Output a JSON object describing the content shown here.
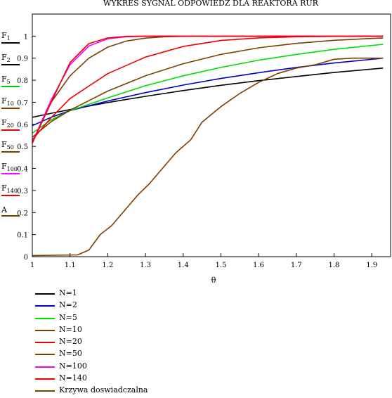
{
  "chart_data": {
    "type": "line",
    "title": "WYKRES SYGNAL ODPOWIEDZ DLA REAKTORA RUR",
    "xlabel": "θ",
    "ylabel": "",
    "xlim": [
      1,
      1.95
    ],
    "ylim": [
      0,
      1.1
    ],
    "xticks": [
      "1",
      "1.1",
      "1.2",
      "1.3",
      "1.4",
      "1.5",
      "1.6",
      "1.7",
      "1.8",
      "1.9"
    ],
    "yticks": [
      "0",
      "0.1",
      "0.2",
      "0.3",
      "0.4",
      "0.5",
      "0.6",
      "0.7",
      "0.8",
      "0.9",
      "1"
    ],
    "side_labels": [
      {
        "base": "F",
        "sub": "1",
        "color": "#000000"
      },
      {
        "base": "F",
        "sub": "2",
        "color": "#000000"
      },
      {
        "base": "F",
        "sub": "5",
        "color": "#00cc00"
      },
      {
        "base": "F",
        "sub": "10",
        "color": "#7b3f00"
      },
      {
        "base": "F",
        "sub": "20",
        "color": "#ee0000"
      },
      {
        "base": "F",
        "sub": "50",
        "color": "#7b3f00"
      },
      {
        "base": "F",
        "sub": "100",
        "color": "#ff00ff"
      },
      {
        "base": "F",
        "sub": "140",
        "color": "#ee0000"
      },
      {
        "base": "A",
        "sub": "",
        "color": "#7b3f00"
      }
    ],
    "series": [
      {
        "name": "N=1",
        "color": "#000000",
        "x": [
          1.0,
          1.05,
          1.1,
          1.2,
          1.3,
          1.4,
          1.5,
          1.6,
          1.7,
          1.8,
          1.93
        ],
        "values": [
          0.632,
          0.65,
          0.667,
          0.699,
          0.727,
          0.753,
          0.777,
          0.798,
          0.817,
          0.835,
          0.855
        ]
      },
      {
        "name": "N=2",
        "color": "#0000cc",
        "x": [
          1.0,
          1.05,
          1.1,
          1.2,
          1.3,
          1.4,
          1.5,
          1.6,
          1.7,
          1.8,
          1.93
        ],
        "values": [
          0.594,
          0.632,
          0.662,
          0.706,
          0.744,
          0.778,
          0.808,
          0.834,
          0.858,
          0.878,
          0.9
        ]
      },
      {
        "name": "N=5",
        "color": "#00dd00",
        "x": [
          1.0,
          1.05,
          1.1,
          1.2,
          1.3,
          1.4,
          1.5,
          1.6,
          1.7,
          1.8,
          1.93
        ],
        "values": [
          0.56,
          0.62,
          0.662,
          0.72,
          0.775,
          0.82,
          0.858,
          0.891,
          0.917,
          0.94,
          0.963
        ]
      },
      {
        "name": "N=10",
        "color": "#7b3f00",
        "x": [
          1.0,
          1.05,
          1.1,
          1.2,
          1.3,
          1.4,
          1.5,
          1.6,
          1.7,
          1.8,
          1.93
        ],
        "values": [
          0.542,
          0.612,
          0.664,
          0.751,
          0.82,
          0.875,
          0.917,
          0.947,
          0.967,
          0.981,
          0.992
        ]
      },
      {
        "name": "N=20",
        "color": "#ee0000",
        "x": [
          1.0,
          1.05,
          1.1,
          1.2,
          1.3,
          1.4,
          1.5,
          1.6,
          1.7,
          1.8,
          1.93
        ],
        "values": [
          0.53,
          0.63,
          0.717,
          0.83,
          0.905,
          0.953,
          0.98,
          0.992,
          0.997,
          0.999,
          1.0
        ]
      },
      {
        "name": "N=50",
        "color": "#7b3f00",
        "x": [
          1.0,
          1.05,
          1.1,
          1.15,
          1.2,
          1.25,
          1.3,
          1.35,
          1.4,
          1.5,
          1.93
        ],
        "values": [
          0.52,
          0.7,
          0.82,
          0.9,
          0.95,
          0.978,
          0.991,
          0.997,
          0.999,
          1.0,
          1.0
        ]
      },
      {
        "name": "N=100",
        "color": "#ff00ff",
        "x": [
          1.0,
          1.05,
          1.1,
          1.15,
          1.2,
          1.25,
          1.3,
          1.4,
          1.93
        ],
        "values": [
          0.518,
          0.71,
          0.87,
          0.955,
          0.988,
          0.997,
          1.0,
          1.0,
          1.0
        ]
      },
      {
        "name": "N=140",
        "color": "#ee0000",
        "x": [
          1.0,
          1.05,
          1.1,
          1.15,
          1.2,
          1.25,
          1.3,
          1.4,
          1.93
        ],
        "values": [
          0.515,
          0.7,
          0.88,
          0.966,
          0.992,
          0.999,
          1.0,
          1.0,
          1.0
        ]
      },
      {
        "name": "Krzywa doswiadczalna",
        "color": "#7b3f00",
        "x": [
          1.0,
          1.12,
          1.15,
          1.18,
          1.21,
          1.25,
          1.28,
          1.31,
          1.35,
          1.38,
          1.42,
          1.45,
          1.5,
          1.55,
          1.6,
          1.65,
          1.7,
          1.75,
          1.8,
          1.85,
          1.93
        ],
        "values": [
          0.005,
          0.008,
          0.03,
          0.1,
          0.14,
          0.22,
          0.28,
          0.33,
          0.41,
          0.47,
          0.53,
          0.61,
          0.68,
          0.74,
          0.79,
          0.83,
          0.855,
          0.87,
          0.895,
          0.9,
          0.9
        ]
      }
    ]
  }
}
